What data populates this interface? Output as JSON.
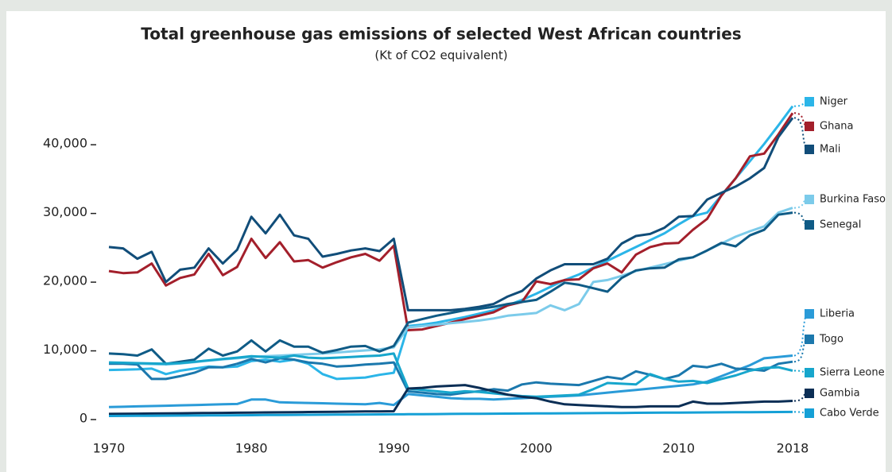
{
  "chart_data": {
    "type": "line",
    "title": "Total greenhouse gas emissions of selected West African countries",
    "subtitle": "(Kt of CO2 equivalent)",
    "x": [
      1970,
      1971,
      1972,
      1973,
      1974,
      1975,
      1976,
      1977,
      1978,
      1979,
      1980,
      1981,
      1982,
      1983,
      1984,
      1985,
      1986,
      1987,
      1988,
      1989,
      1990,
      1991,
      1992,
      1993,
      1994,
      1995,
      1996,
      1997,
      1998,
      1999,
      2000,
      2001,
      2002,
      2003,
      2004,
      2005,
      2006,
      2007,
      2008,
      2009,
      2010,
      2011,
      2012,
      2013,
      2014,
      2015,
      2016,
      2017,
      2018
    ],
    "xlim": [
      1970,
      2018
    ],
    "xticks": [
      1970,
      1980,
      1990,
      2000,
      2010,
      2018
    ],
    "ylim": [
      0,
      48000
    ],
    "yticks": [
      0,
      {
        "value": 10000,
        "label": "10,000"
      },
      {
        "value": 20000,
        "label": "20,000"
      },
      {
        "value": 30000,
        "label": "30,000"
      },
      {
        "value": 40000,
        "label": "40,000"
      }
    ],
    "series": [
      {
        "name": "Niger",
        "color": "#2bb5e8",
        "values": [
          7100,
          7150,
          7200,
          7300,
          6500,
          7000,
          7300,
          7600,
          7500,
          7600,
          8400,
          8600,
          8300,
          8600,
          8000,
          6500,
          5800,
          5900,
          6000,
          6400,
          6700,
          13500,
          13700,
          14000,
          14400,
          14800,
          15300,
          15800,
          16500,
          17300,
          18200,
          19200,
          20200,
          21000,
          22000,
          23000,
          24000,
          25000,
          26000,
          27000,
          28300,
          29500,
          30000,
          32500,
          35000,
          37500,
          40000,
          42700,
          45500
        ]
      },
      {
        "name": "Ghana",
        "color": "#a31f2b",
        "values": [
          21500,
          21200,
          21300,
          22600,
          19400,
          20500,
          21000,
          24000,
          20900,
          22100,
          26200,
          23400,
          25700,
          22900,
          23100,
          22000,
          22800,
          23500,
          24000,
          23000,
          25200,
          12900,
          13000,
          13500,
          14000,
          14500,
          15000,
          15500,
          16500,
          17000,
          20000,
          19600,
          20200,
          20300,
          21900,
          22600,
          21300,
          23900,
          25000,
          25500,
          25600,
          27500,
          29100,
          32500,
          35000,
          38200,
          38600,
          41400,
          44500
        ]
      },
      {
        "name": "Mali",
        "color": "#114d79",
        "values": [
          25000,
          24800,
          23300,
          24300,
          19900,
          21700,
          22000,
          24800,
          22600,
          24600,
          29400,
          27000,
          29700,
          26700,
          26200,
          23600,
          24000,
          24500,
          24800,
          24400,
          26200,
          15800,
          15800,
          15800,
          15800,
          16000,
          16300,
          16700,
          17800,
          18600,
          20400,
          21600,
          22500,
          22500,
          22500,
          23300,
          25500,
          26600,
          26900,
          27800,
          29400,
          29500,
          31900,
          32900,
          33800,
          35000,
          36500,
          41000,
          43800
        ]
      },
      {
        "name": "Burkina Faso",
        "color": "#7ccbea",
        "values": [
          8100,
          8050,
          8000,
          7950,
          7900,
          8050,
          8250,
          8450,
          8650,
          8800,
          9000,
          9100,
          9200,
          9300,
          9400,
          9500,
          9650,
          9800,
          9950,
          10100,
          10400,
          13300,
          13500,
          13700,
          13900,
          14100,
          14300,
          14600,
          15000,
          15200,
          15400,
          16500,
          15800,
          16700,
          19900,
          20200,
          20800,
          21500,
          22000,
          22500,
          23000,
          23500,
          24500,
          25500,
          26500,
          27300,
          28000,
          30000,
          30700
        ]
      },
      {
        "name": "Senegal",
        "color": "#0f5b86",
        "values": [
          9500,
          9400,
          9200,
          10100,
          8000,
          8300,
          8600,
          10200,
          9200,
          9800,
          11400,
          9800,
          11400,
          10500,
          10500,
          9600,
          10000,
          10500,
          10600,
          9800,
          10600,
          14000,
          14500,
          15000,
          15400,
          15800,
          16000,
          16300,
          16700,
          17000,
          17300,
          18500,
          19800,
          19500,
          19000,
          18500,
          20500,
          21600,
          21900,
          22000,
          23200,
          23500,
          24500,
          25600,
          25100,
          26700,
          27500,
          29700,
          30000
        ]
      },
      {
        "name": "Liberia",
        "color": "#2a9bd8",
        "values": [
          1700,
          1750,
          1800,
          1850,
          1900,
          1950,
          2000,
          2050,
          2100,
          2150,
          2800,
          2800,
          2400,
          2350,
          2300,
          2250,
          2200,
          2150,
          2100,
          2300,
          2000,
          3600,
          3400,
          3200,
          3000,
          2900,
          2900,
          2800,
          2900,
          3000,
          3100,
          3200,
          3300,
          3400,
          3600,
          3800,
          4000,
          4200,
          4400,
          4600,
          4800,
          5000,
          5400,
          6200,
          7000,
          7800,
          8800,
          9000,
          9200
        ]
      },
      {
        "name": "Togo",
        "color": "#1b78ad",
        "values": [
          8000,
          8000,
          7900,
          5800,
          5800,
          6200,
          6700,
          7500,
          7500,
          8000,
          8700,
          8200,
          8800,
          8600,
          8200,
          8000,
          7600,
          7700,
          7900,
          8000,
          8200,
          4000,
          3800,
          3600,
          3500,
          3800,
          4000,
          4300,
          4100,
          5000,
          5300,
          5100,
          5000,
          4900,
          5500,
          6100,
          5800,
          6900,
          6400,
          5800,
          6300,
          7700,
          7500,
          8000,
          7300,
          7200,
          7000,
          8000,
          8300
        ]
      },
      {
        "name": "Sierra Leone",
        "color": "#17a6cc",
        "values": [
          8200,
          8150,
          8100,
          8050,
          8000,
          8100,
          8300,
          8500,
          8700,
          8900,
          9100,
          9000,
          8900,
          9200,
          8900,
          8800,
          8900,
          9000,
          9100,
          9200,
          9500,
          4400,
          4200,
          4000,
          3800,
          4000,
          3900,
          3700,
          3500,
          3300,
          3200,
          3300,
          3400,
          3500,
          4300,
          5200,
          5100,
          5000,
          6500,
          5800,
          5400,
          5500,
          5200,
          5800,
          6300,
          7000,
          7400,
          7500,
          7000
        ]
      },
      {
        "name": "Gambia",
        "color": "#0b2e55",
        "values": [
          700,
          720,
          740,
          760,
          780,
          800,
          820,
          840,
          860,
          880,
          900,
          920,
          940,
          960,
          980,
          1000,
          1020,
          1040,
          1060,
          1080,
          1100,
          4400,
          4500,
          4700,
          4800,
          4900,
          4500,
          4000,
          3500,
          3200,
          3000,
          2500,
          2100,
          2000,
          1900,
          1800,
          1700,
          1700,
          1800,
          1800,
          1800,
          2500,
          2200,
          2200,
          2300,
          2400,
          2500,
          2500,
          2600
        ]
      },
      {
        "name": "Cabo Verde",
        "color": "#15a0d6",
        "values": [
          400,
          413,
          425,
          438,
          450,
          463,
          475,
          488,
          500,
          513,
          525,
          538,
          550,
          563,
          575,
          588,
          600,
          613,
          625,
          638,
          650,
          663,
          675,
          688,
          700,
          713,
          725,
          738,
          750,
          763,
          775,
          788,
          800,
          813,
          825,
          838,
          850,
          863,
          875,
          888,
          900,
          913,
          925,
          938,
          950,
          963,
          975,
          988,
          1000
        ]
      }
    ]
  }
}
